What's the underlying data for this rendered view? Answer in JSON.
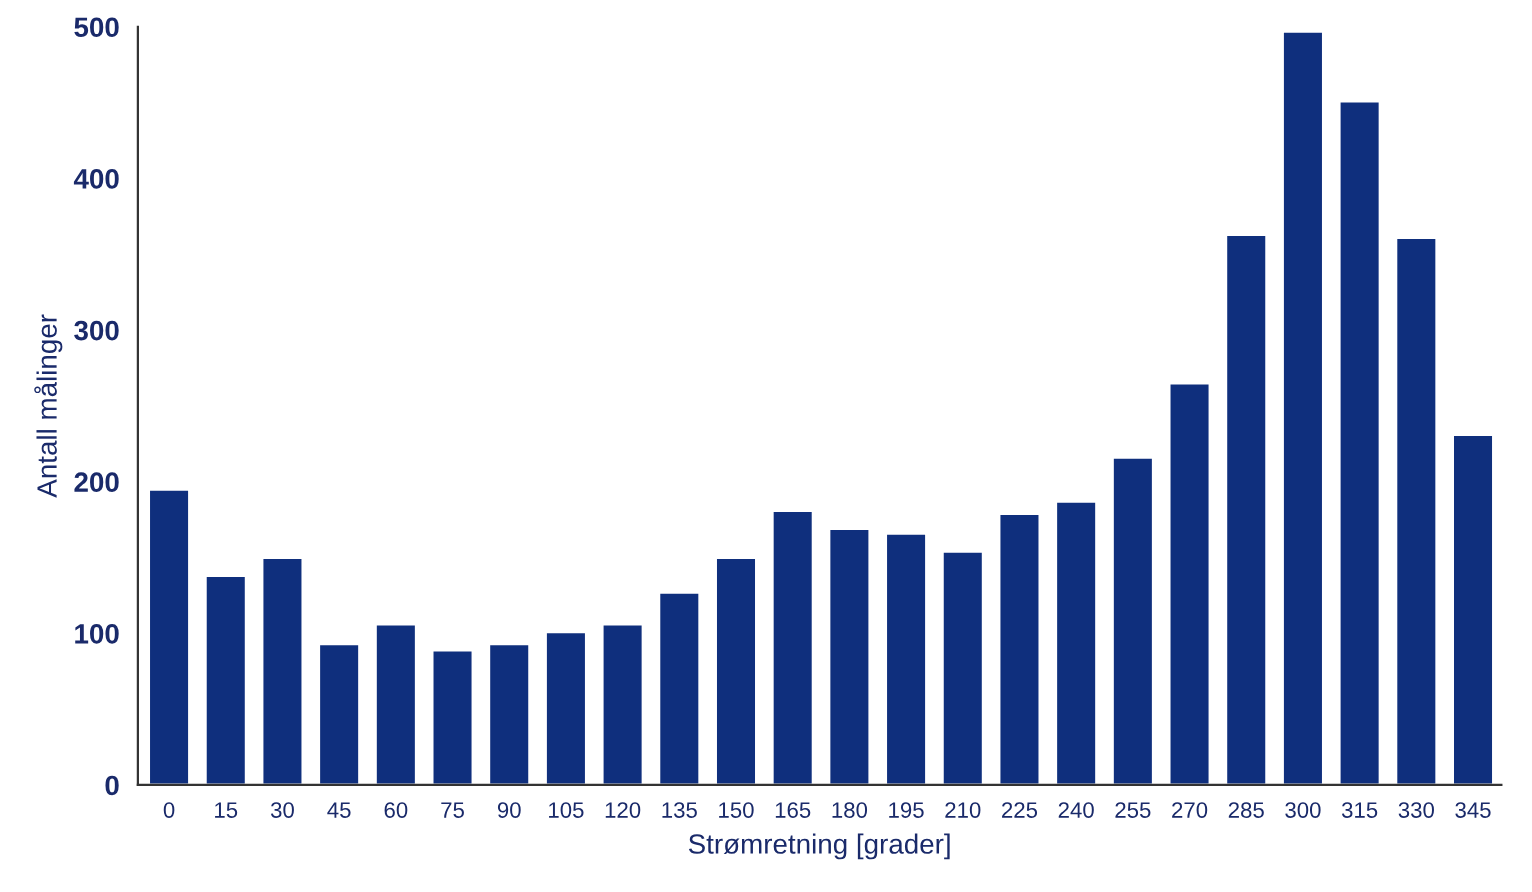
{
  "chart_data": {
    "type": "bar",
    "xlabel": "Strømretning [grader]",
    "ylabel": "Antall målinger",
    "categories": [
      "0",
      "15",
      "30",
      "45",
      "60",
      "75",
      "90",
      "105",
      "120",
      "135",
      "150",
      "165",
      "180",
      "195",
      "210",
      "225",
      "240",
      "255",
      "270",
      "285",
      "300",
      "315",
      "330",
      "345"
    ],
    "values": [
      195,
      138,
      150,
      93,
      106,
      89,
      93,
      101,
      106,
      127,
      150,
      181,
      169,
      166,
      154,
      179,
      187,
      216,
      265,
      363,
      497,
      451,
      361,
      231
    ],
    "color": "#0f2f7d",
    "ylim": [
      0,
      500
    ],
    "yticks": [
      0,
      100,
      200,
      300,
      400,
      500
    ],
    "grid": false
  }
}
